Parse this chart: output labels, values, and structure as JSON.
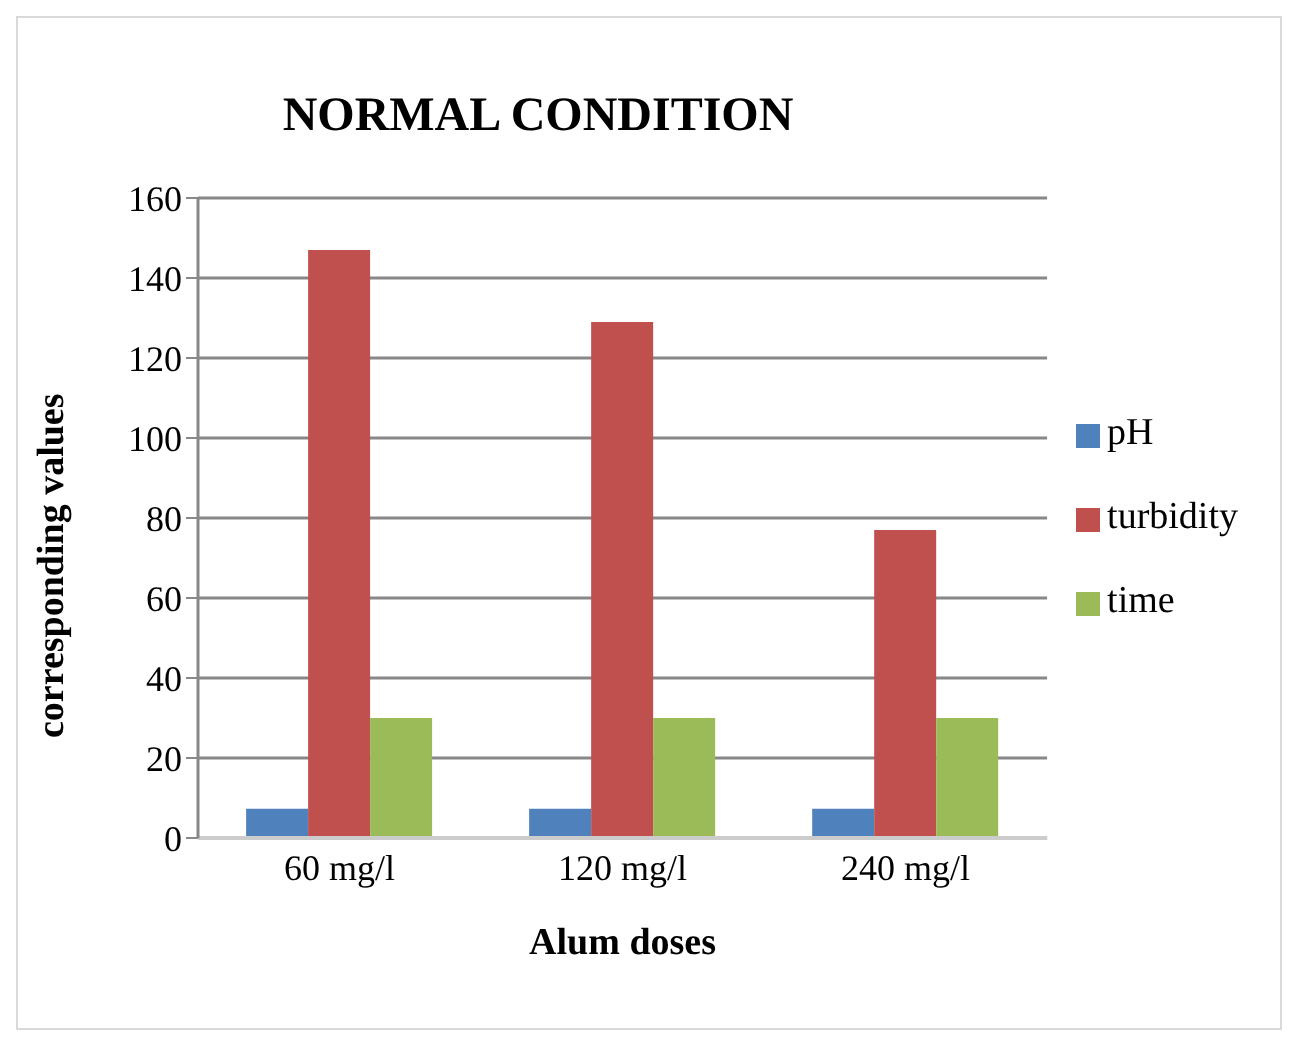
{
  "chart_data": {
    "type": "bar",
    "title": "NORMAL CONDITION",
    "xlabel": "Alum doses",
    "ylabel": "corresponding values",
    "categories": [
      "60 mg/l",
      "120 mg/l",
      "240 mg/l"
    ],
    "series": [
      {
        "name": "pH",
        "color": "#4f81bd",
        "values": [
          7.3,
          7.3,
          7.3
        ]
      },
      {
        "name": "turbidity",
        "color": "#c0504d",
        "values": [
          147,
          129,
          77
        ]
      },
      {
        "name": "time",
        "color": "#9bbb59",
        "values": [
          30,
          30,
          30
        ]
      }
    ],
    "ylim": [
      0,
      160
    ],
    "yticks": [
      0,
      20,
      40,
      60,
      80,
      100,
      120,
      140,
      160
    ],
    "grid": "y",
    "legend": "right"
  }
}
